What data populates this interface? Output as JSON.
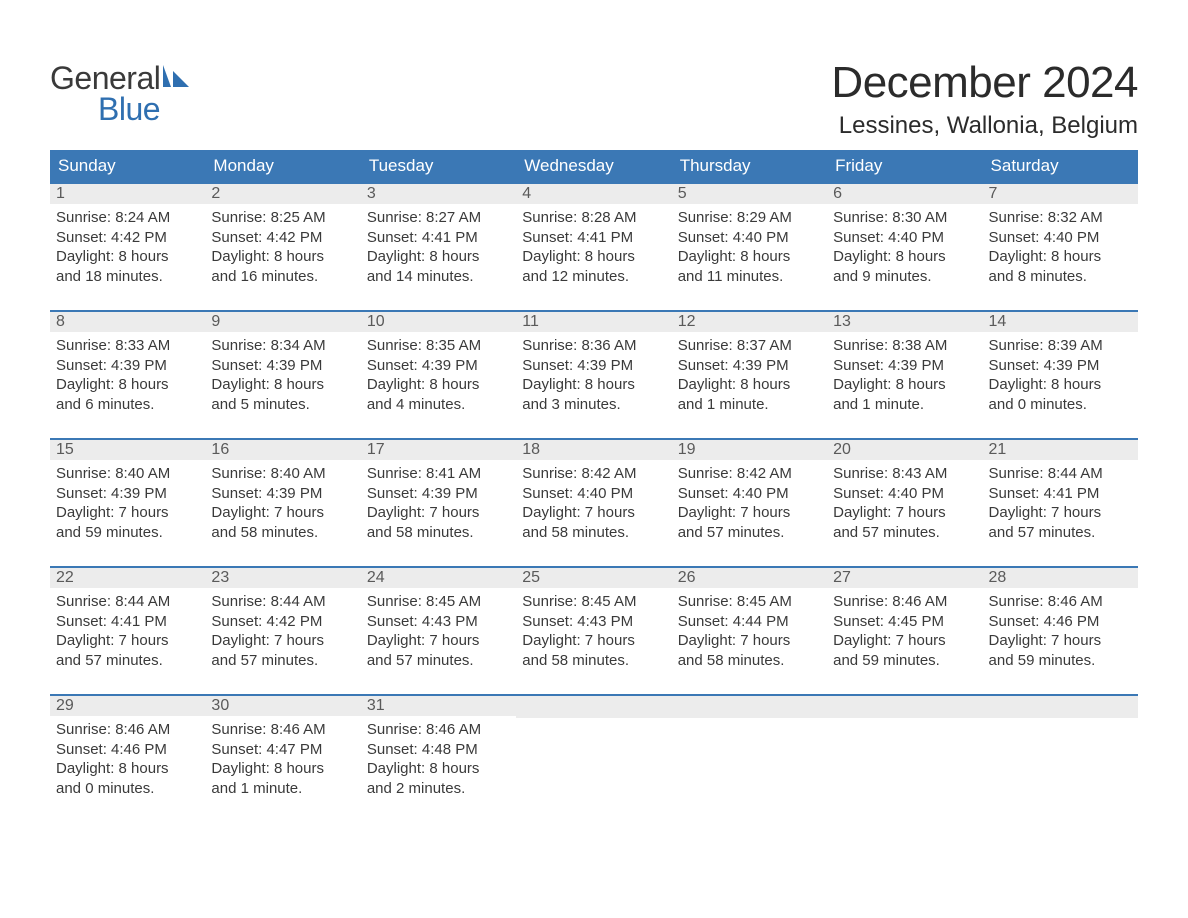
{
  "logo": {
    "word1": "General",
    "word2": "Blue"
  },
  "title": "December 2024",
  "location": "Lessines, Wallonia, Belgium",
  "colors": {
    "header_bg": "#3b78b5",
    "header_text": "#ffffff",
    "daynum_bg": "#ececec",
    "daynum_border": "#3b78b5",
    "text": "#3a3a3a",
    "brand_blue": "#2f6fb0"
  },
  "weekdays": [
    "Sunday",
    "Monday",
    "Tuesday",
    "Wednesday",
    "Thursday",
    "Friday",
    "Saturday"
  ],
  "weeks": [
    [
      {
        "n": "1",
        "sunrise": "Sunrise: 8:24 AM",
        "sunset": "Sunset: 4:42 PM",
        "day1": "Daylight: 8 hours",
        "day2": "and 18 minutes."
      },
      {
        "n": "2",
        "sunrise": "Sunrise: 8:25 AM",
        "sunset": "Sunset: 4:42 PM",
        "day1": "Daylight: 8 hours",
        "day2": "and 16 minutes."
      },
      {
        "n": "3",
        "sunrise": "Sunrise: 8:27 AM",
        "sunset": "Sunset: 4:41 PM",
        "day1": "Daylight: 8 hours",
        "day2": "and 14 minutes."
      },
      {
        "n": "4",
        "sunrise": "Sunrise: 8:28 AM",
        "sunset": "Sunset: 4:41 PM",
        "day1": "Daylight: 8 hours",
        "day2": "and 12 minutes."
      },
      {
        "n": "5",
        "sunrise": "Sunrise: 8:29 AM",
        "sunset": "Sunset: 4:40 PM",
        "day1": "Daylight: 8 hours",
        "day2": "and 11 minutes."
      },
      {
        "n": "6",
        "sunrise": "Sunrise: 8:30 AM",
        "sunset": "Sunset: 4:40 PM",
        "day1": "Daylight: 8 hours",
        "day2": "and 9 minutes."
      },
      {
        "n": "7",
        "sunrise": "Sunrise: 8:32 AM",
        "sunset": "Sunset: 4:40 PM",
        "day1": "Daylight: 8 hours",
        "day2": "and 8 minutes."
      }
    ],
    [
      {
        "n": "8",
        "sunrise": "Sunrise: 8:33 AM",
        "sunset": "Sunset: 4:39 PM",
        "day1": "Daylight: 8 hours",
        "day2": "and 6 minutes."
      },
      {
        "n": "9",
        "sunrise": "Sunrise: 8:34 AM",
        "sunset": "Sunset: 4:39 PM",
        "day1": "Daylight: 8 hours",
        "day2": "and 5 minutes."
      },
      {
        "n": "10",
        "sunrise": "Sunrise: 8:35 AM",
        "sunset": "Sunset: 4:39 PM",
        "day1": "Daylight: 8 hours",
        "day2": "and 4 minutes."
      },
      {
        "n": "11",
        "sunrise": "Sunrise: 8:36 AM",
        "sunset": "Sunset: 4:39 PM",
        "day1": "Daylight: 8 hours",
        "day2": "and 3 minutes."
      },
      {
        "n": "12",
        "sunrise": "Sunrise: 8:37 AM",
        "sunset": "Sunset: 4:39 PM",
        "day1": "Daylight: 8 hours",
        "day2": "and 1 minute."
      },
      {
        "n": "13",
        "sunrise": "Sunrise: 8:38 AM",
        "sunset": "Sunset: 4:39 PM",
        "day1": "Daylight: 8 hours",
        "day2": "and 1 minute."
      },
      {
        "n": "14",
        "sunrise": "Sunrise: 8:39 AM",
        "sunset": "Sunset: 4:39 PM",
        "day1": "Daylight: 8 hours",
        "day2": "and 0 minutes."
      }
    ],
    [
      {
        "n": "15",
        "sunrise": "Sunrise: 8:40 AM",
        "sunset": "Sunset: 4:39 PM",
        "day1": "Daylight: 7 hours",
        "day2": "and 59 minutes."
      },
      {
        "n": "16",
        "sunrise": "Sunrise: 8:40 AM",
        "sunset": "Sunset: 4:39 PM",
        "day1": "Daylight: 7 hours",
        "day2": "and 58 minutes."
      },
      {
        "n": "17",
        "sunrise": "Sunrise: 8:41 AM",
        "sunset": "Sunset: 4:39 PM",
        "day1": "Daylight: 7 hours",
        "day2": "and 58 minutes."
      },
      {
        "n": "18",
        "sunrise": "Sunrise: 8:42 AM",
        "sunset": "Sunset: 4:40 PM",
        "day1": "Daylight: 7 hours",
        "day2": "and 58 minutes."
      },
      {
        "n": "19",
        "sunrise": "Sunrise: 8:42 AM",
        "sunset": "Sunset: 4:40 PM",
        "day1": "Daylight: 7 hours",
        "day2": "and 57 minutes."
      },
      {
        "n": "20",
        "sunrise": "Sunrise: 8:43 AM",
        "sunset": "Sunset: 4:40 PM",
        "day1": "Daylight: 7 hours",
        "day2": "and 57 minutes."
      },
      {
        "n": "21",
        "sunrise": "Sunrise: 8:44 AM",
        "sunset": "Sunset: 4:41 PM",
        "day1": "Daylight: 7 hours",
        "day2": "and 57 minutes."
      }
    ],
    [
      {
        "n": "22",
        "sunrise": "Sunrise: 8:44 AM",
        "sunset": "Sunset: 4:41 PM",
        "day1": "Daylight: 7 hours",
        "day2": "and 57 minutes."
      },
      {
        "n": "23",
        "sunrise": "Sunrise: 8:44 AM",
        "sunset": "Sunset: 4:42 PM",
        "day1": "Daylight: 7 hours",
        "day2": "and 57 minutes."
      },
      {
        "n": "24",
        "sunrise": "Sunrise: 8:45 AM",
        "sunset": "Sunset: 4:43 PM",
        "day1": "Daylight: 7 hours",
        "day2": "and 57 minutes."
      },
      {
        "n": "25",
        "sunrise": "Sunrise: 8:45 AM",
        "sunset": "Sunset: 4:43 PM",
        "day1": "Daylight: 7 hours",
        "day2": "and 58 minutes."
      },
      {
        "n": "26",
        "sunrise": "Sunrise: 8:45 AM",
        "sunset": "Sunset: 4:44 PM",
        "day1": "Daylight: 7 hours",
        "day2": "and 58 minutes."
      },
      {
        "n": "27",
        "sunrise": "Sunrise: 8:46 AM",
        "sunset": "Sunset: 4:45 PM",
        "day1": "Daylight: 7 hours",
        "day2": "and 59 minutes."
      },
      {
        "n": "28",
        "sunrise": "Sunrise: 8:46 AM",
        "sunset": "Sunset: 4:46 PM",
        "day1": "Daylight: 7 hours",
        "day2": "and 59 minutes."
      }
    ],
    [
      {
        "n": "29",
        "sunrise": "Sunrise: 8:46 AM",
        "sunset": "Sunset: 4:46 PM",
        "day1": "Daylight: 8 hours",
        "day2": "and 0 minutes."
      },
      {
        "n": "30",
        "sunrise": "Sunrise: 8:46 AM",
        "sunset": "Sunset: 4:47 PM",
        "day1": "Daylight: 8 hours",
        "day2": "and 1 minute."
      },
      {
        "n": "31",
        "sunrise": "Sunrise: 8:46 AM",
        "sunset": "Sunset: 4:48 PM",
        "day1": "Daylight: 8 hours",
        "day2": "and 2 minutes."
      },
      null,
      null,
      null,
      null
    ]
  ]
}
